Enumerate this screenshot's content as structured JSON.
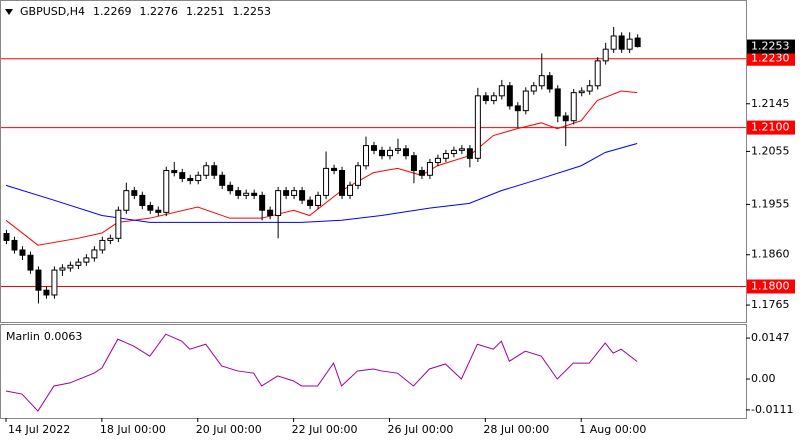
{
  "chart_data": {
    "type": "candlestick",
    "symbol": "GBPUSD,H4",
    "xlim": [
      -0.625,
      92.625
    ],
    "ylim": [
      1.1733,
      1.2339
    ],
    "yticks": [
      1.2145,
      1.2055,
      1.1955,
      {
        "value": 1.186,
        "label": "1.1860"
      },
      1.1765
    ],
    "levels": [
      {
        "value": 1.223,
        "label": "1.2230"
      },
      {
        "value": 1.21,
        "label": "1.2100"
      },
      {
        "value": 1.18,
        "label": "1.1800"
      }
    ],
    "level_color": "#ff0000",
    "xticks": [
      {
        "value": 0,
        "label": "14 Jul 2022"
      },
      {
        "value": 12,
        "label": "18 Jul 00:00"
      },
      {
        "value": 24,
        "label": "20 Jul 00:00"
      },
      {
        "value": 36,
        "label": "22 Jul 00:00"
      },
      {
        "value": 48,
        "label": "26 Jul 00:00"
      },
      {
        "value": 60,
        "label": "28 Jul 00:00"
      },
      {
        "value": 72,
        "label": "1 Aug 00:00"
      }
    ],
    "candles": {
      "open": [
        1.19,
        1.1887,
        1.1869,
        1.1859,
        1.1831,
        1.1793,
        1.1784,
        1.1831,
        1.1835,
        1.184,
        1.1846,
        1.1854,
        1.1869,
        1.1887,
        1.1891,
        1.1944,
        1.1981,
        1.1972,
        1.1953,
        1.1944,
        1.194,
        1.2019,
        1.2015,
        1.2004,
        1.2,
        1.201,
        1.2028,
        1.201,
        1.1991,
        1.1981,
        1.1972,
        1.1976,
        1.1972,
        1.1944,
        1.1934,
        1.1981,
        1.1972,
        1.1981,
        1.1963,
        1.1953,
        1.1972,
        1.2023,
        1.2019,
        1.1972,
        1.1991,
        1.2028,
        1.2066,
        1.2057,
        1.2047,
        1.2057,
        1.206,
        1.2047,
        1.2019,
        1.201,
        1.2034,
        1.2042,
        1.2051,
        1.2057,
        1.206,
        1.2042,
        1.216,
        1.2151,
        1.216,
        1.2179,
        1.2141,
        1.2132,
        1.2169,
        1.2179,
        1.2198,
        1.2173,
        1.2122,
        1.2113,
        1.2166,
        1.2169,
        1.2179,
        1.2226,
        1.2248,
        1.2273,
        1.2248,
        1.2269
      ],
      "high": [
        1.1907,
        1.1894,
        1.1876,
        1.1866,
        1.1838,
        1.18,
        1.1838,
        1.1842,
        1.1847,
        1.1853,
        1.1861,
        1.1876,
        1.1894,
        1.1898,
        1.1951,
        1.1996,
        1.1988,
        1.1979,
        1.196,
        1.1951,
        1.2026,
        1.2035,
        1.2022,
        1.2011,
        1.2017,
        1.2035,
        1.2035,
        1.2017,
        1.1998,
        1.1988,
        1.1983,
        1.1983,
        1.1979,
        1.1951,
        1.1988,
        1.1988,
        1.1988,
        1.1988,
        1.197,
        1.1979,
        1.2055,
        1.203,
        1.2026,
        1.1998,
        1.2035,
        1.2083,
        1.2073,
        1.2064,
        1.2064,
        1.2079,
        1.2067,
        1.2054,
        1.2026,
        1.2041,
        1.2049,
        1.2058,
        1.2064,
        1.2067,
        1.2067,
        1.2175,
        1.2167,
        1.2167,
        1.219,
        1.2186,
        1.2148,
        1.2176,
        1.2186,
        1.224,
        1.2205,
        1.218,
        1.2129,
        1.2173,
        1.2176,
        1.219,
        1.2233,
        1.226,
        1.229,
        1.228,
        1.228,
        1.2276
      ],
      "low": [
        1.188,
        1.1862,
        1.185,
        1.1824,
        1.1768,
        1.1777,
        1.1777,
        1.182,
        1.1828,
        1.1833,
        1.1839,
        1.1847,
        1.1862,
        1.188,
        1.1884,
        1.1937,
        1.1965,
        1.1946,
        1.1937,
        1.1933,
        1.1933,
        1.2008,
        1.1997,
        1.1993,
        1.1993,
        1.2003,
        1.2003,
        1.1984,
        1.1974,
        1.1965,
        1.1965,
        1.1965,
        1.1925,
        1.1927,
        1.1891,
        1.1965,
        1.1965,
        1.1956,
        1.1946,
        1.1946,
        1.1965,
        1.2012,
        1.1965,
        1.1965,
        1.1984,
        1.2021,
        1.205,
        1.204,
        1.204,
        1.205,
        1.204,
        1.1995,
        1.2003,
        1.2003,
        1.2027,
        1.2035,
        1.2044,
        1.205,
        1.2025,
        1.2035,
        1.2144,
        1.2144,
        1.2153,
        1.2134,
        1.21,
        1.2125,
        1.2162,
        1.2172,
        1.2166,
        1.211,
        1.2065,
        1.2106,
        1.2159,
        1.2162,
        1.2172,
        1.2219,
        1.2241,
        1.2241,
        1.2241,
        1.2251
      ],
      "close": [
        1.1887,
        1.1869,
        1.1859,
        1.1831,
        1.1793,
        1.1784,
        1.1831,
        1.1835,
        1.184,
        1.1846,
        1.1854,
        1.1869,
        1.1887,
        1.1891,
        1.1944,
        1.1981,
        1.1972,
        1.1953,
        1.1944,
        1.194,
        1.2019,
        1.2015,
        1.2004,
        1.2,
        1.201,
        1.2028,
        1.201,
        1.1991,
        1.1981,
        1.1972,
        1.1976,
        1.1972,
        1.1944,
        1.1934,
        1.1981,
        1.1972,
        1.1981,
        1.1963,
        1.1953,
        1.1972,
        1.2023,
        1.2019,
        1.1972,
        1.1991,
        1.2028,
        1.2066,
        1.2057,
        1.2047,
        1.2057,
        1.206,
        1.2047,
        1.2019,
        1.201,
        1.2034,
        1.2042,
        1.2051,
        1.2057,
        1.206,
        1.2042,
        1.216,
        1.2151,
        1.216,
        1.2179,
        1.2141,
        1.2132,
        1.2169,
        1.2179,
        1.2198,
        1.2173,
        1.2122,
        1.2113,
        1.2166,
        1.2169,
        1.2179,
        1.2226,
        1.2248,
        1.2273,
        1.2248,
        1.2267,
        1.2253
      ]
    },
    "lines": [
      {
        "color": "#ff0000",
        "x": [
          0,
          4,
          9,
          12,
          14,
          18,
          24,
          28,
          32,
          36,
          38,
          42,
          46,
          49,
          52,
          54,
          58,
          61,
          64,
          67,
          69,
          72,
          74,
          77,
          79
        ],
        "values": [
          1.1925,
          1.1878,
          1.1891,
          1.1901,
          1.1921,
          1.1929,
          1.195,
          1.1929,
          1.1929,
          1.1944,
          1.1934,
          1.1981,
          1.2015,
          1.2023,
          1.201,
          1.2028,
          1.2047,
          1.2085,
          1.2098,
          1.2109,
          1.2098,
          1.2113,
          1.2151,
          1.2169,
          1.2166
        ]
      },
      {
        "color": "#0000ff",
        "x": [
          0,
          6,
          12,
          18,
          24,
          31,
          37,
          42,
          47,
          53,
          58,
          62,
          67,
          72,
          75,
          79
        ],
        "values": [
          1.1991,
          1.1963,
          1.1934,
          1.1921,
          1.1921,
          1.1921,
          1.1921,
          1.1925,
          1.1934,
          1.1948,
          1.1957,
          1.1981,
          1.2004,
          1.2028,
          1.2053,
          1.207
        ]
      }
    ],
    "indicator": {
      "name": "Marlin",
      "color": "#a000a0",
      "ylim": [
        -0.014,
        0.0194
      ],
      "yticks": [
        0.0147,
        {
          "value": 0,
          "label": "0.00"
        },
        -0.0111
      ],
      "x": [
        0,
        2,
        4,
        6,
        8,
        11,
        12,
        14,
        16,
        18,
        20,
        22,
        23,
        25,
        27,
        29,
        31,
        32,
        34,
        36,
        37,
        39,
        41,
        42,
        44,
        46,
        47,
        49,
        51,
        53,
        55,
        57,
        59,
        61,
        62,
        63,
        65,
        67,
        69,
        71,
        73,
        75,
        76,
        77,
        79
      ],
      "values": [
        -0.0043,
        -0.0054,
        -0.0115,
        -0.0025,
        -0.0014,
        0.0021,
        0.0039,
        0.0143,
        0.0118,
        0.0082,
        0.0161,
        0.0136,
        0.0107,
        0.0125,
        0.0047,
        0.0029,
        0.0021,
        -0.0025,
        0.0011,
        -0.0007,
        -0.0025,
        -0.0025,
        0.0057,
        -0.0025,
        0.0029,
        0.0036,
        0.0029,
        0.0021,
        -0.0025,
        0.0036,
        0.0054,
        0,
        0.0125,
        0.0107,
        0.0136,
        0.0064,
        0.01,
        0.0082,
        0,
        0.0057,
        0.0057,
        0.0129,
        0.0093,
        0.0107,
        0.0063
      ]
    }
  }
}
